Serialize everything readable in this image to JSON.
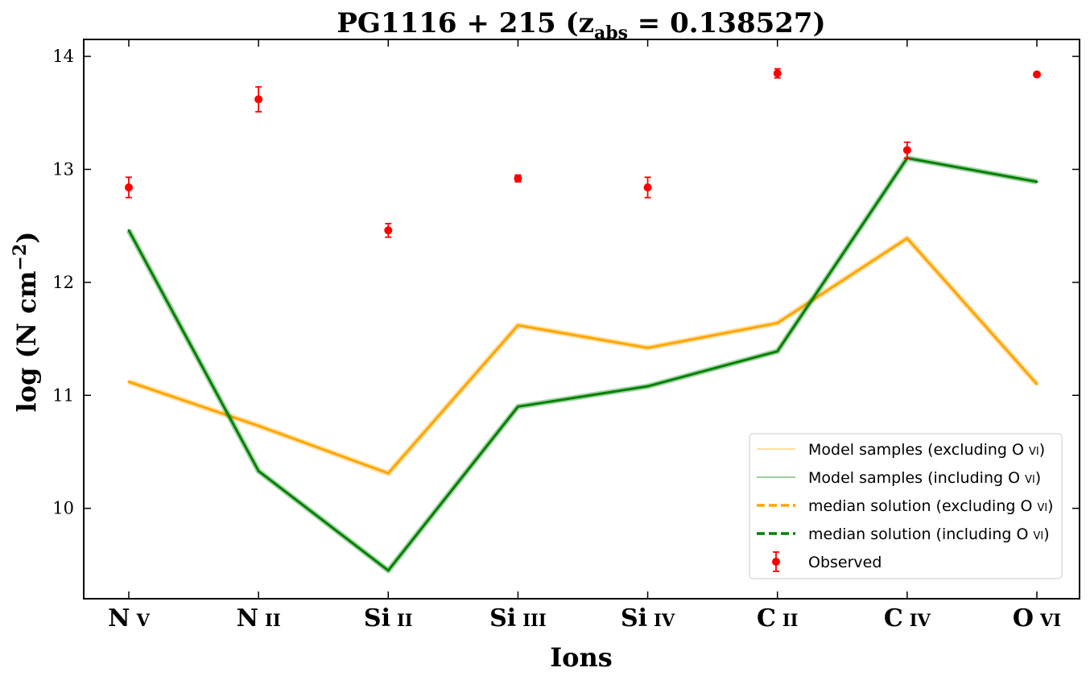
{
  "chart_data": {
    "type": "line",
    "title_parts": {
      "name": "PG1116 + 215 (z",
      "subscript": "abs",
      "rest": " = 0.138527)"
    },
    "xlabel": "Ions",
    "ylabel_parts": {
      "main": "log (N cm",
      "superscript": "−2",
      "close": ")"
    },
    "categories": [
      {
        "element": "N",
        "state": "v"
      },
      {
        "element": "N",
        "state": "ii"
      },
      {
        "element": "Si",
        "state": "ii"
      },
      {
        "element": "Si",
        "state": "iii"
      },
      {
        "element": "Si",
        "state": "iv"
      },
      {
        "element": "C",
        "state": "ii"
      },
      {
        "element": "C",
        "state": "iv"
      },
      {
        "element": "O",
        "state": "vi"
      }
    ],
    "ylim": [
      9.2,
      14.15
    ],
    "yticks": [
      "10",
      "11",
      "12",
      "13",
      "14"
    ],
    "ytick_values": [
      10,
      11,
      12,
      13,
      14
    ],
    "series": [
      {
        "key": "excl",
        "values": [
          11.12,
          10.73,
          10.31,
          11.62,
          11.42,
          11.64,
          12.39,
          11.1
        ],
        "color": "#FFA500"
      },
      {
        "key": "incl",
        "values": [
          12.46,
          10.33,
          9.45,
          10.9,
          11.08,
          11.39,
          13.1,
          12.89
        ],
        "color": "#008000"
      }
    ],
    "observed": {
      "color": "#FF0000",
      "values": [
        12.84,
        13.62,
        12.46,
        12.92,
        12.84,
        13.85,
        13.17,
        13.84
      ],
      "errors": [
        0.09,
        0.11,
        0.06,
        0.03,
        0.09,
        0.04,
        0.07,
        0.0
      ]
    },
    "legend": {
      "position": "lower right",
      "entries": [
        {
          "label": "Model samples (excluding ",
          "ion": "O",
          "state": "vi",
          "suffix": ")",
          "style": "thin",
          "color": "#FFA500"
        },
        {
          "label": "Model samples (including ",
          "ion": "O",
          "state": "vi",
          "suffix": ")",
          "style": "thin",
          "color": "#008000"
        },
        {
          "label": "median solution (excluding ",
          "ion": "O",
          "state": "vi",
          "suffix": ")",
          "style": "dashed",
          "color": "#FFA500"
        },
        {
          "label": "median solution (including ",
          "ion": "O",
          "state": "vi",
          "suffix": ")",
          "style": "dashed",
          "color": "#008000"
        },
        {
          "label": "Observed",
          "style": "marker",
          "color": "#FF0000"
        }
      ]
    }
  }
}
